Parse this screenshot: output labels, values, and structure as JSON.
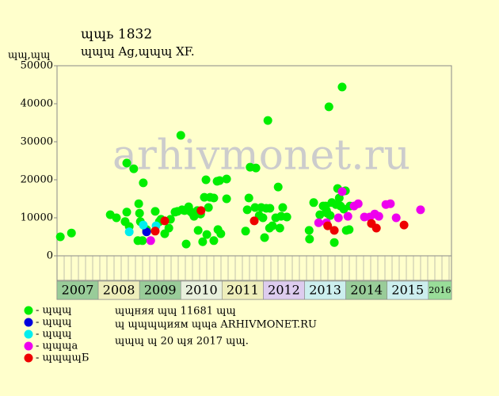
{
  "chart_data": {
    "type": "scatter",
    "title": "ɰɰь 1832",
    "subtitle": "ɰɰɰ Ag,ɰɰɰ XF.",
    "y_label": "ɰɰ,ɰɰ",
    "xlim": [
      2007,
      2016.56
    ],
    "xticks": [
      2007,
      2008,
      2009,
      2010,
      2011,
      2012,
      2013,
      2014,
      2015,
      2016
    ],
    "year_colors": [
      "#99cc99",
      "#eeeebb",
      "#99cc99",
      "#e8f0dd",
      "#eeeebb",
      "#ddccee",
      "#cceeee",
      "#99cc99",
      "#cceeee",
      "#99dd99"
    ],
    "ylim": [
      0,
      50000
    ],
    "yticks": [
      0,
      10000,
      20000,
      30000,
      40000,
      50000
    ],
    "series": [
      {
        "name": "- ɰɰɰ",
        "color": "#00ee00",
        "x": [
          2007.08,
          2007.35,
          2008.29,
          2008.44,
          2008.69,
          2008.69,
          2008.65,
          2008.75,
          2008.86,
          2008.98,
          2009.0,
          2009.02,
          2008.96,
          2009.07,
          2009.09,
          2009.17,
          2009.38,
          2009.48,
          2009.52,
          2009.61,
          2009.71,
          2009.75,
          2009.86,
          2009.92,
          2010.0,
          2010.03,
          2010.09,
          2010.13,
          2010.19,
          2010.23,
          2010.28,
          2010.32,
          2010.4,
          2010.42,
          2010.48,
          2010.53,
          2010.57,
          2010.61,
          2010.63,
          2010.67,
          2010.71,
          2010.8,
          2010.8,
          2010.88,
          2010.9,
          2010.97,
          2010.94,
          2011.11,
          2011.11,
          2011.57,
          2011.61,
          2011.65,
          2011.68,
          2011.8,
          2011.82,
          2011.9,
          2011.95,
          2011.99,
          2012.03,
          2012.07,
          2012.11,
          2012.15,
          2012.16,
          2012.22,
          2012.3,
          2012.36,
          2012.4,
          2012.43,
          2012.47,
          2012.57,
          2013.11,
          2013.12,
          2013.22,
          2013.37,
          2013.45,
          2013.51,
          2013.53,
          2013.55,
          2013.59,
          2013.62,
          2013.66,
          2013.72,
          2013.76,
          2013.8,
          2013.84,
          2013.87,
          2013.91,
          2013.95,
          2013.99,
          2014.01,
          2014.08,
          2014.1
        ],
        "values": [
          5000,
          6000,
          10800,
          10000,
          24400,
          11500,
          9000,
          7700,
          22900,
          13700,
          11200,
          9000,
          4000,
          4000,
          19200,
          6900,
          11700,
          9000,
          9600,
          5800,
          7300,
          9600,
          11500,
          11700,
          31700,
          12100,
          11900,
          3100,
          12900,
          11700,
          11200,
          10400,
          11900,
          6700,
          11000,
          3700,
          15400,
          20000,
          5600,
          12700,
          15400,
          15200,
          4000,
          19600,
          6900,
          5800,
          19800,
          15000,
          20200,
          6500,
          12100,
          15200,
          23300,
          12700,
          23100,
          10600,
          12700,
          10000,
          4800,
          12500,
          35600,
          7300,
          12500,
          7900,
          10000,
          18100,
          7300,
          10400,
          12700,
          10200,
          6700,
          4400,
          14000,
          10800,
          13100,
          13100,
          11900,
          11200,
          39200,
          10600,
          14000,
          3500,
          13500,
          17700,
          15200,
          13100,
          44400,
          12300,
          17100,
          6700,
          6900,
          13100
        ]
      },
      {
        "name": "- ɰɰɰ",
        "color": "#0000dd",
        "x": [
          2009.17
        ],
        "values": [
          6300
        ]
      },
      {
        "name": "- ɰɰɰ",
        "color": "#00eeee",
        "x": [
          2008.75,
          2009.09,
          2009.4
        ],
        "values": [
          6300,
          8100,
          7900
        ]
      },
      {
        "name": "- ɰɰɰа",
        "color": "#ee00ee",
        "x": [
          2009.27,
          2013.34,
          2013.53,
          2013.82,
          2013.91,
          2014.05,
          2014.2,
          2014.3,
          2014.45,
          2014.58,
          2014.7,
          2014.8,
          2014.97,
          2015.08,
          2015.22,
          2015.81
        ],
        "values": [
          4000,
          8700,
          8700,
          10000,
          16900,
          10400,
          13100,
          13700,
          10200,
          10200,
          11000,
          10400,
          13500,
          13700,
          10000,
          12100
        ]
      },
      {
        "name": "- ɰɰɰɰБ",
        "color": "#ee0000",
        "x": [
          2009.38,
          2009.61,
          2010.49,
          2011.78,
          2013.56,
          2013.72,
          2014.62,
          2014.74,
          2015.41
        ],
        "values": [
          6500,
          9200,
          11900,
          9200,
          7900,
          6700,
          8500,
          7300,
          8100
        ]
      }
    ],
    "notes": [
      "ɰɰняя ɰɰ 11681 ɰɰ",
      "ɰ ɰɰɰɰиям ɰɰа ARHIVMONET.RU",
      "ɰɰɰ ɰ 20 ɰя 2017 ɰɰ."
    ]
  }
}
